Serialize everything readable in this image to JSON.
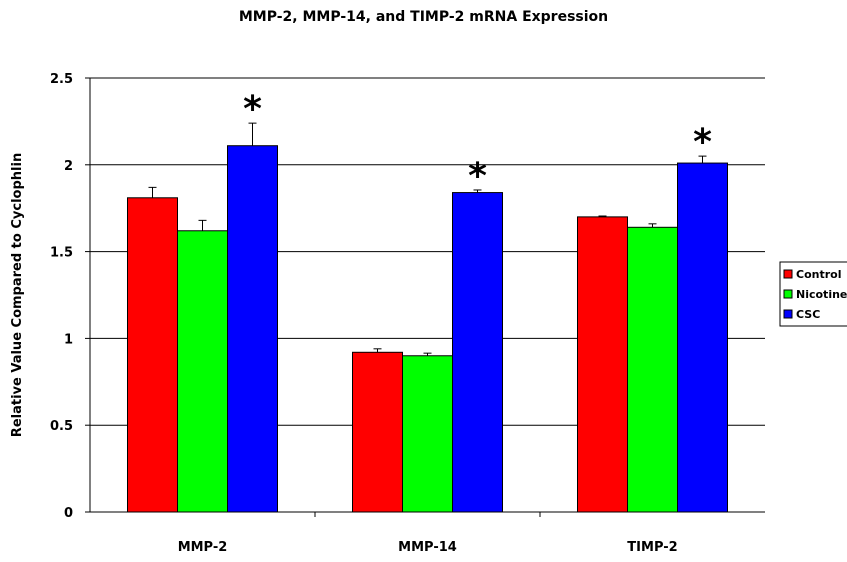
{
  "chart_data": {
    "type": "bar",
    "title": "MMP-2, MMP-14, and TIMP-2 mRNA Expression",
    "xlabel": "",
    "ylabel": "Relative Value Compared to Cyclophlin",
    "ylim": [
      0,
      2.5
    ],
    "yticks": [
      "0",
      "0.5",
      "1",
      "1.5",
      "2",
      "2.5"
    ],
    "ytick_values": [
      0,
      0.5,
      1,
      1.5,
      2,
      2.5
    ],
    "grid": true,
    "legend_position": "right",
    "categories": [
      "MMP-2",
      "MMP-14",
      "TIMP-2"
    ],
    "series": [
      {
        "name": "Control",
        "color": "#ff0000",
        "values": [
          1.81,
          0.92,
          1.7
        ],
        "errors": [
          0.06,
          0.02,
          0.005
        ]
      },
      {
        "name": "Nicotine",
        "color": "#00ff00",
        "values": [
          1.62,
          0.9,
          1.64
        ],
        "errors": [
          0.06,
          0.015,
          0.02
        ]
      },
      {
        "name": "CSC",
        "color": "#0000ff",
        "values": [
          2.11,
          1.84,
          2.01
        ],
        "errors": [
          0.13,
          0.015,
          0.04
        ]
      }
    ],
    "annotations": [
      {
        "text": "*",
        "category": "MMP-2",
        "series": "CSC"
      },
      {
        "text": "*",
        "category": "MMP-14",
        "series": "CSC"
      },
      {
        "text": "*",
        "category": "TIMP-2",
        "series": "CSC"
      }
    ]
  }
}
